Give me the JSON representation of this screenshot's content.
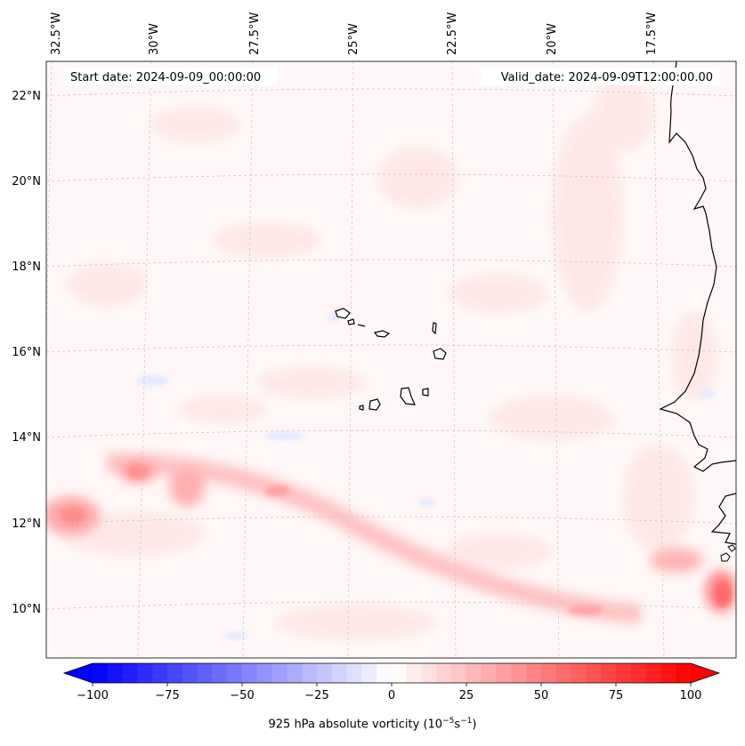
{
  "header": {
    "start_date": "Start date: 2024-09-09_00:00:00",
    "valid_date": "Valid_date: 2024-09-09T12:00:00.00"
  },
  "map": {
    "lon_ticks": [
      "32.5°W",
      "30°W",
      "27.5°W",
      "25°W",
      "22.5°W",
      "20°W",
      "17.5°W"
    ],
    "lat_ticks": [
      "22°N",
      "20°N",
      "18°N",
      "16°N",
      "14°N",
      "12°N",
      "10°N"
    ],
    "background_color": "#fff7f7"
  },
  "colorbar": {
    "ticks": [
      "−100",
      "−75",
      "−50",
      "−25",
      "0",
      "25",
      "50",
      "75",
      "100"
    ],
    "label_prefix": "925 hPa absolute vorticity (10",
    "label_exp1": "−5",
    "label_mid": "s",
    "label_exp2": "−1",
    "label_suffix": ")",
    "min": -100,
    "max": 100,
    "step": 5,
    "neg_color": "#0000ff",
    "pos_color": "#ff0000"
  }
}
